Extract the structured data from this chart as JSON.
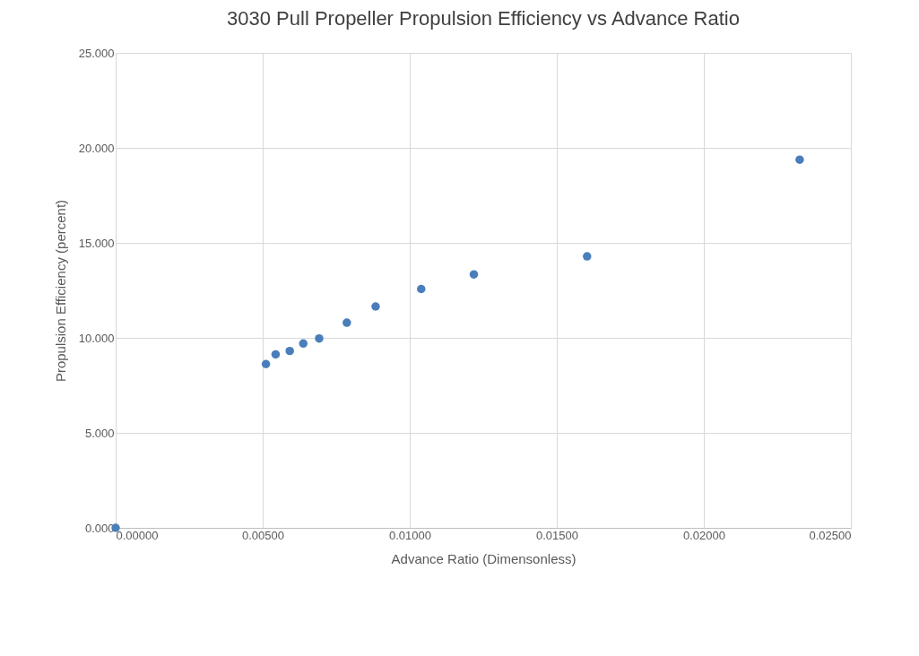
{
  "chart_data": {
    "type": "scatter",
    "title": "3030 Pull Propeller Propulsion Efficiency vs Advance Ratio",
    "xlabel": "Advance Ratio (Dimensonless)",
    "ylabel": "Propulsion Efficiency (percent)",
    "x": [
      0,
      0.00511,
      0.00544,
      0.00592,
      0.00638,
      0.00692,
      0.00786,
      0.00884,
      0.01039,
      0.01218,
      0.01603,
      0.02326
    ],
    "series": [
      {
        "color": "#4a7ebb",
        "values": [
          0,
          8.62,
          9.13,
          9.31,
          9.7,
          9.97,
          10.8,
          11.65,
          12.57,
          13.34,
          14.29,
          19.38
        ]
      }
    ],
    "xlim": [
      0,
      0.025
    ],
    "ylim": [
      0,
      25
    ],
    "xticks": [
      {
        "value": 0,
        "label": "0.00000"
      },
      {
        "value": 0.005,
        "label": "0.00500"
      },
      {
        "value": 0.01,
        "label": "0.01000"
      },
      {
        "value": 0.015,
        "label": "0.01500"
      },
      {
        "value": 0.02,
        "label": "0.02000"
      },
      {
        "value": 0.025,
        "label": "0.02500"
      }
    ],
    "yticks": [
      {
        "value": 0,
        "label": "0.000"
      },
      {
        "value": 5,
        "label": "5.000"
      },
      {
        "value": 10,
        "label": "10.000"
      },
      {
        "value": 15,
        "label": "15.000"
      },
      {
        "value": 20,
        "label": "20.000"
      },
      {
        "value": 25,
        "label": "25.000"
      }
    ],
    "grid": true,
    "marker": "circle"
  }
}
